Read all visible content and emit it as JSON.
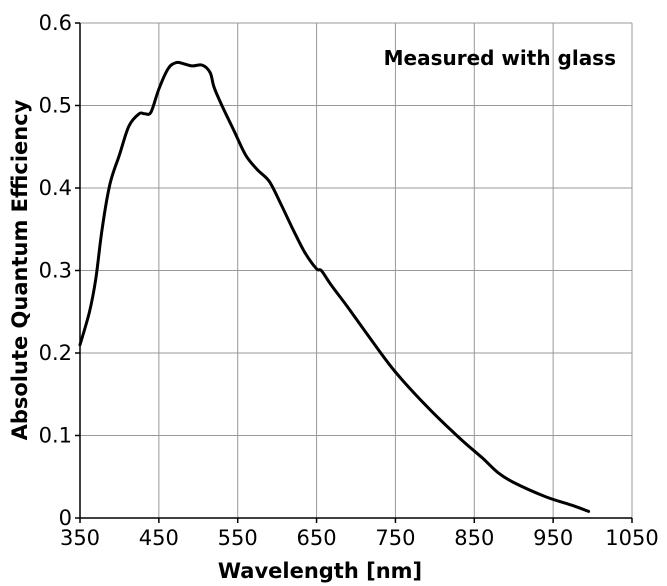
{
  "chart_data": {
    "type": "line",
    "xlabel": "Wavelength [nm]",
    "ylabel": "Absolute Quantum Efficiency",
    "xlim": [
      350,
      1050
    ],
    "ylim": [
      0,
      0.6
    ],
    "x_ticks": [
      350,
      450,
      550,
      650,
      750,
      850,
      950,
      1050
    ],
    "x_tick_labels": [
      "350",
      "450",
      "550",
      "650",
      "750",
      "850",
      "950",
      "1050"
    ],
    "y_ticks": [
      0,
      0.1,
      0.2,
      0.3,
      0.4,
      0.5,
      0.6
    ],
    "y_tick_labels": [
      "0",
      "0.1",
      "0.2",
      "0.3",
      "0.4",
      "0.5",
      "0.6"
    ],
    "grid": true,
    "annotation": "Measured with glass",
    "annotation_position": "top-right",
    "line_color": "#000000",
    "grid_color": "#999999",
    "series": [
      {
        "x": [
          350,
          362,
          370,
          378,
          388,
          400,
          412,
          425,
          432,
          440,
          450,
          462,
          472,
          480,
          492,
          505,
          515,
          520,
          530,
          545,
          560,
          575,
          590,
          605,
          620,
          635,
          650,
          656,
          668,
          690,
          720,
          750,
          790,
          830,
          860,
          880,
          900,
          940,
          975,
          995
        ],
        "y": [
          0.21,
          0.25,
          0.29,
          0.35,
          0.405,
          0.44,
          0.475,
          0.49,
          0.49,
          0.492,
          0.52,
          0.545,
          0.552,
          0.551,
          0.548,
          0.549,
          0.54,
          0.522,
          0.5,
          0.47,
          0.44,
          0.422,
          0.408,
          0.38,
          0.35,
          0.322,
          0.302,
          0.3,
          0.283,
          0.255,
          0.215,
          0.177,
          0.135,
          0.098,
          0.073,
          0.055,
          0.043,
          0.026,
          0.015,
          0.008
        ]
      }
    ]
  }
}
